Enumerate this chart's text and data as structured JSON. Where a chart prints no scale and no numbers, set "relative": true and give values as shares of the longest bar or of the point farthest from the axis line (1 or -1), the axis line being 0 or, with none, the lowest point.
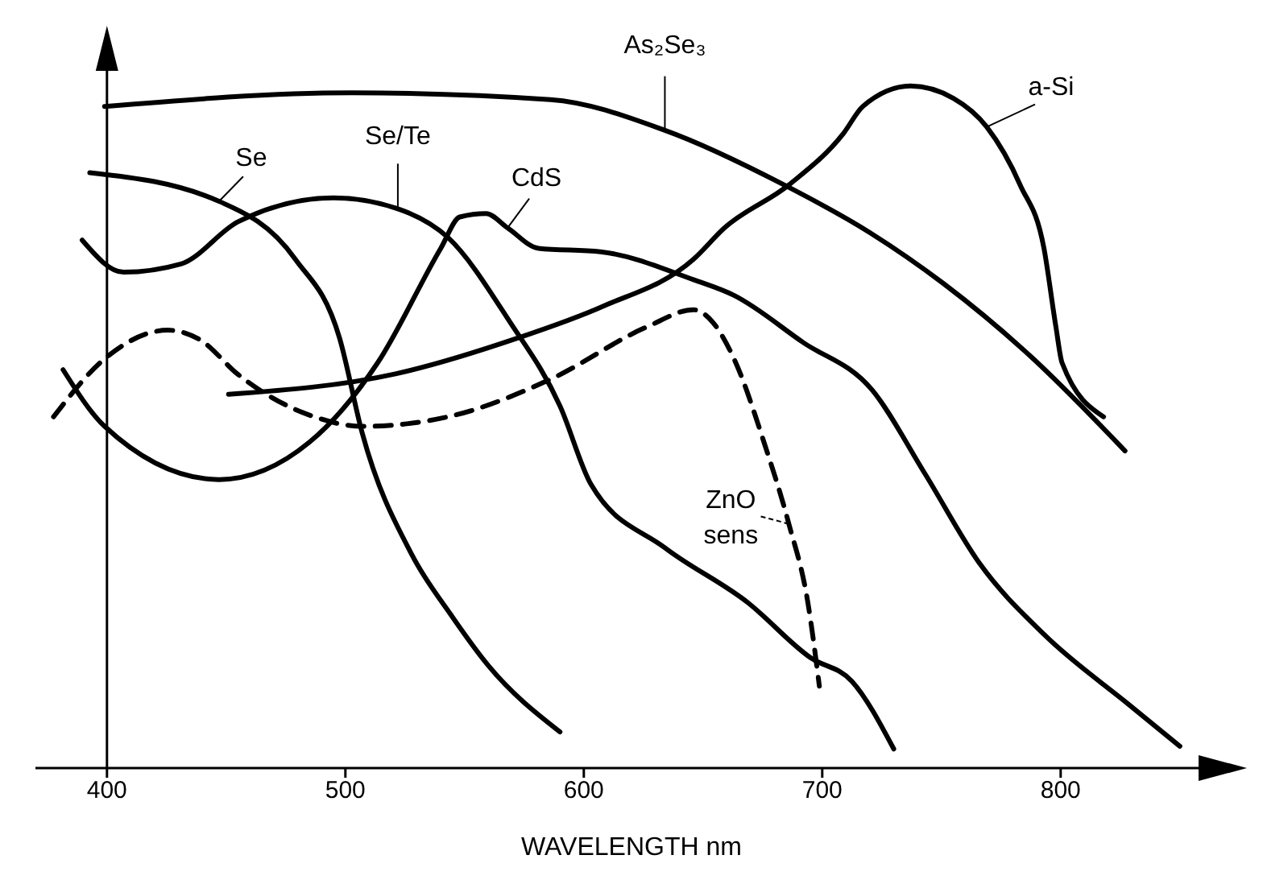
{
  "chart_data": {
    "type": "line",
    "relative": true,
    "xlabel": "WAVELENGTH nm",
    "xlim": [
      370,
      870
    ],
    "xticks": [
      400,
      500,
      600,
      700,
      800
    ],
    "marker": "none",
    "series": [
      {
        "name": "As₂Se₃",
        "color": "#000000",
        "line_style": "solid",
        "x": [
          399,
          502.6,
          586,
          634,
          684,
          720,
          751,
          787,
          827
        ],
        "values": [
          0.97,
          0.99,
          0.98,
          0.935,
          0.855,
          0.785,
          0.71,
          0.605,
          0.465
        ]
      },
      {
        "name": "a-Si",
        "color": "#000000",
        "line_style": "solid",
        "x": [
          451,
          521,
          571,
          608,
          646,
          659,
          686,
          709,
          717,
          737,
          755,
          769,
          783,
          793,
          798,
          800.6,
          818
        ],
        "values": [
          0.548,
          0.578,
          0.629,
          0.677,
          0.746,
          0.792,
          0.855,
          0.931,
          0.97,
          1,
          0.982,
          0.94,
          0.855,
          0.762,
          0.647,
          0.594,
          0.515
        ]
      },
      {
        "name": "Se",
        "color": "#000000",
        "line_style": "solid",
        "x": [
          392.8,
          447,
          479,
          497.6,
          507,
          528,
          544,
          560,
          590
        ],
        "values": [
          0.873,
          0.831,
          0.746,
          0.63,
          0.492,
          0.312,
          0.226,
          0.15,
          0.053
        ]
      },
      {
        "name": "Se/Te",
        "color": "#000000",
        "line_style": "solid",
        "x": [
          389.6,
          407,
          431,
          455,
          495,
          522,
          543,
          569,
          590,
          603,
          634,
          669,
          695,
          712.5,
          730
        ],
        "values": [
          0.774,
          0.727,
          0.739,
          0.801,
          0.836,
          0.82,
          0.778,
          0.654,
          0.531,
          0.416,
          0.323,
          0.242,
          0.162,
          0.127,
          0.028
        ]
      },
      {
        "name": "CdS",
        "color": "#000000",
        "line_style": "solid",
        "x": [
          381.6,
          399,
          447,
          485,
          513.5,
          540,
          548,
          559,
          568,
          581,
          607,
          646,
          663,
          692,
          721,
          743,
          766,
          793,
          829,
          850
        ],
        "values": [
          0.584,
          0.501,
          0.423,
          0.478,
          0.594,
          0.762,
          0.808,
          0.813,
          0.792,
          0.762,
          0.757,
          0.716,
          0.693,
          0.624,
          0.554,
          0.432,
          0.3,
          0.196,
          0.092,
          0.032
        ]
      },
      {
        "name": "ZnO sens",
        "color": "#000000",
        "line_style": "dashed",
        "x": [
          377.6,
          399,
          425.6,
          439,
          455,
          487,
          507,
          543,
          586,
          626.6,
          646,
          654,
          663,
          676,
          686,
          694,
          698.8
        ],
        "values": [
          0.515,
          0.6,
          0.642,
          0.628,
          0.577,
          0.515,
          0.501,
          0.515,
          0.57,
          0.647,
          0.672,
          0.654,
          0.6,
          0.473,
          0.358,
          0.242,
          0.12
        ]
      }
    ]
  }
}
